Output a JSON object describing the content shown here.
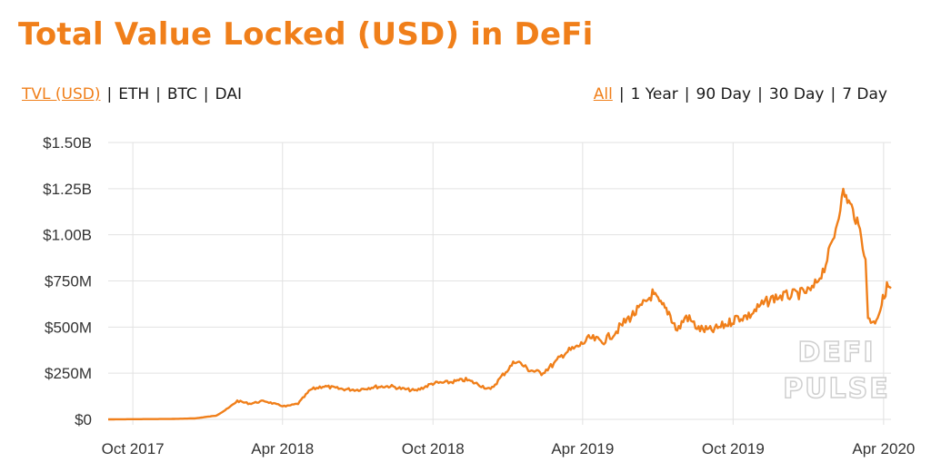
{
  "header": {
    "title": "Total Value Locked (USD) in DeFi",
    "unit_options": [
      {
        "label": "TVL (USD)",
        "active": true
      },
      {
        "label": "ETH",
        "active": false
      },
      {
        "label": "BTC",
        "active": false
      },
      {
        "label": "DAI",
        "active": false
      }
    ],
    "range_options": [
      {
        "label": "All",
        "active": true
      },
      {
        "label": "1 Year",
        "active": false
      },
      {
        "label": "90 Day",
        "active": false
      },
      {
        "label": "30 Day",
        "active": false
      },
      {
        "label": "7 Day",
        "active": false
      }
    ]
  },
  "watermark": {
    "line1": "DEFI",
    "line2": "PULSE"
  },
  "colors": {
    "accent": "#f07f1a",
    "line": "#f07f1a",
    "grid": "#e2e2e2",
    "axis": "#333333"
  },
  "chart_data": {
    "type": "line",
    "title": "Total Value Locked (USD) in DeFi",
    "xlabel": "",
    "ylabel": "",
    "x_range": [
      "2017-09-01",
      "2020-04-10"
    ],
    "ylim": [
      0,
      1500000000
    ],
    "y_ticks": [
      {
        "value": 0,
        "label": "$0"
      },
      {
        "value": 250000000,
        "label": "$250M"
      },
      {
        "value": 500000000,
        "label": "$500M"
      },
      {
        "value": 750000000,
        "label": "$750M"
      },
      {
        "value": 1000000000,
        "label": "$1.00B"
      },
      {
        "value": 1250000000,
        "label": "$1.25B"
      },
      {
        "value": 1500000000,
        "label": "$1.50B"
      }
    ],
    "x_ticks": [
      {
        "date": "2017-10-01",
        "label": "Oct 2017"
      },
      {
        "date": "2018-04-01",
        "label": "Apr 2018"
      },
      {
        "date": "2018-10-01",
        "label": "Oct 2018"
      },
      {
        "date": "2019-04-01",
        "label": "Apr 2019"
      },
      {
        "date": "2019-10-01",
        "label": "Oct 2019"
      },
      {
        "date": "2020-04-01",
        "label": "Apr 2020"
      }
    ],
    "grid": true,
    "legend": "none",
    "series": [
      {
        "points": [
          [
            "2017-09-01",
            0
          ],
          [
            "2017-10-01",
            1000000
          ],
          [
            "2017-11-15",
            2000000
          ],
          [
            "2017-12-15",
            5000000
          ],
          [
            "2018-01-10",
            20000000
          ],
          [
            "2018-01-25",
            60000000
          ],
          [
            "2018-02-05",
            100000000
          ],
          [
            "2018-02-20",
            85000000
          ],
          [
            "2018-03-10",
            100000000
          ],
          [
            "2018-03-25",
            80000000
          ],
          [
            "2018-04-05",
            70000000
          ],
          [
            "2018-04-20",
            85000000
          ],
          [
            "2018-05-05",
            160000000
          ],
          [
            "2018-05-20",
            180000000
          ],
          [
            "2018-06-10",
            165000000
          ],
          [
            "2018-07-01",
            160000000
          ],
          [
            "2018-07-20",
            175000000
          ],
          [
            "2018-08-10",
            180000000
          ],
          [
            "2018-08-25",
            165000000
          ],
          [
            "2018-09-10",
            155000000
          ],
          [
            "2018-10-01",
            195000000
          ],
          [
            "2018-10-20",
            200000000
          ],
          [
            "2018-11-10",
            215000000
          ],
          [
            "2018-11-25",
            190000000
          ],
          [
            "2018-12-10",
            160000000
          ],
          [
            "2018-12-25",
            240000000
          ],
          [
            "2019-01-10",
            320000000
          ],
          [
            "2019-01-25",
            270000000
          ],
          [
            "2019-02-10",
            250000000
          ],
          [
            "2019-02-25",
            300000000
          ],
          [
            "2019-03-10",
            360000000
          ],
          [
            "2019-03-25",
            390000000
          ],
          [
            "2019-04-10",
            440000000
          ],
          [
            "2019-04-25",
            420000000
          ],
          [
            "2019-05-10",
            470000000
          ],
          [
            "2019-05-25",
            540000000
          ],
          [
            "2019-06-10",
            600000000
          ],
          [
            "2019-06-25",
            680000000
          ],
          [
            "2019-07-05",
            620000000
          ],
          [
            "2019-07-15",
            580000000
          ],
          [
            "2019-07-25",
            480000000
          ],
          [
            "2019-08-05",
            560000000
          ],
          [
            "2019-08-20",
            490000000
          ],
          [
            "2019-09-05",
            480000000
          ],
          [
            "2019-09-25",
            520000000
          ],
          [
            "2019-10-05",
            550000000
          ],
          [
            "2019-10-20",
            560000000
          ],
          [
            "2019-11-05",
            620000000
          ],
          [
            "2019-11-20",
            660000000
          ],
          [
            "2019-12-05",
            670000000
          ],
          [
            "2019-12-20",
            680000000
          ],
          [
            "2020-01-05",
            700000000
          ],
          [
            "2020-01-20",
            820000000
          ],
          [
            "2020-02-01",
            1000000000
          ],
          [
            "2020-02-12",
            1230000000
          ],
          [
            "2020-02-22",
            1150000000
          ],
          [
            "2020-03-05",
            1000000000
          ],
          [
            "2020-03-10",
            850000000
          ],
          [
            "2020-03-13",
            560000000
          ],
          [
            "2020-03-20",
            520000000
          ],
          [
            "2020-03-28",
            600000000
          ],
          [
            "2020-04-05",
            720000000
          ],
          [
            "2020-04-10",
            710000000
          ]
        ]
      }
    ]
  }
}
